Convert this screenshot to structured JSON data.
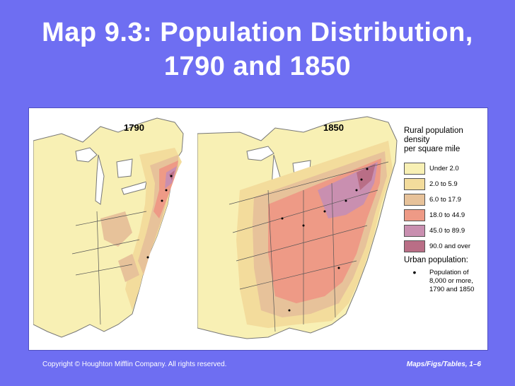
{
  "title_line1": "Map 9.3: Population Distribution,",
  "title_line2": "1790 and 1850",
  "maps": [
    {
      "label": "1790"
    },
    {
      "label": "1850"
    }
  ],
  "legend": {
    "title_line1": "Rural population density",
    "title_line2": "per square mile",
    "items": [
      {
        "label": "Under 2.0",
        "color": "#f8f0b4"
      },
      {
        "label": "2.0 to 5.9",
        "color": "#f3dc9c"
      },
      {
        "label": "6.0 to 17.9",
        "color": "#e7c29a"
      },
      {
        "label": "18.0 to 44.9",
        "color": "#ee9a86"
      },
      {
        "label": "45.0 to 89.9",
        "color": "#c98fb0"
      },
      {
        "label": "90.0 and over",
        "color": "#b96e86"
      }
    ],
    "urban_title": "Urban population:",
    "urban_bullet": "•",
    "urban_text": "Population of 8,000 or more, 1790 and 1850"
  },
  "footer": {
    "copyright": "Copyright © Houghton Mifflin Company. All rights reserved.",
    "source": "Maps/Figs/Tables, 1–6"
  }
}
